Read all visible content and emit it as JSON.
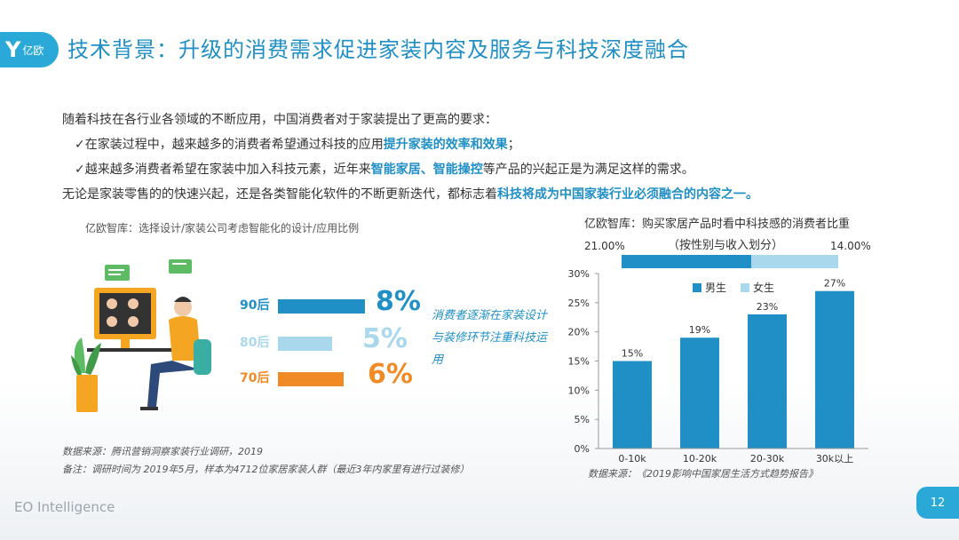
{
  "header": {
    "logo_mark": "Y",
    "logo_text": "亿欧",
    "title": "技术背景：升级的消费需求促进家装内容及服务与科技深度融合"
  },
  "intro": {
    "line1": "随着科技在各行业各领域的不断应用，中国消费者对于家装提出了更高的要求：",
    "line2_pre": "✓在家装过程中，越来越多的消费者希望通过科技的应用",
    "line2_hl": "提升家装的效率和效果",
    "line2_post": "；",
    "line3_pre": "✓越来越多消费者希望在家装中加入科技元素，近年来",
    "line3_hl1": "智能家居、智能操控",
    "line3_post": "等产品的兴起正是为满足这样的需求。",
    "line4_pre": "无论是家装零售的的快速兴起，还是各类智能化软件的不断更新迭代，都标志着",
    "line4_hl": "科技将成为中国家装行业必须融合的内容之一。"
  },
  "left_panel": {
    "caption": "亿欧智库：选择设计/家装公司考虑智能化的设计/应用比例",
    "rows": [
      {
        "label": "90后",
        "value": "8%",
        "fraction": 0.08,
        "color": "#1f8fc6"
      },
      {
        "label": "80后",
        "value": "5%",
        "fraction": 0.05,
        "color": "#a9d8ec"
      },
      {
        "label": "70后",
        "value": "6%",
        "fraction": 0.06,
        "color": "#f08a24"
      }
    ],
    "note": "消费者逐渐在家装设计与装修环节注重科技运用",
    "source": "数据来源：腾讯营销洞察家装行业调研，2019",
    "remark": "备注：调研时间为 2019年5月，样本为4712位家居家装人群（最近3年内家里有进行过装修）"
  },
  "right_panel": {
    "caption1": "亿欧智库：购买家居产品时看中科技感的消费者比重",
    "caption2": "（按性别与收入划分）",
    "gender": {
      "male_value": "21.00%",
      "female_value": "14.00%",
      "male_share": 21,
      "female_share": 14,
      "male_color": "#1f8fc6",
      "female_color": "#a9d8ec"
    },
    "legend_male": "男生",
    "legend_female": "女生",
    "source": "数据来源：《2019影响中国家居生活方式趋势报告》"
  },
  "chart_data": {
    "type": "bar",
    "categories": [
      "0-10k",
      "10-20k",
      "20-30k",
      "30k以上"
    ],
    "values": [
      15,
      19,
      23,
      27
    ],
    "value_labels": [
      "15%",
      "19%",
      "23%",
      "27%"
    ],
    "ylim": [
      0,
      30
    ],
    "yticks": [
      "0%",
      "5%",
      "10%",
      "15%",
      "20%",
      "25%",
      "30%"
    ],
    "bar_color": "#1f8fc6",
    "grid": false
  },
  "footer": {
    "brand": "EO Intelligence",
    "page": "12"
  }
}
